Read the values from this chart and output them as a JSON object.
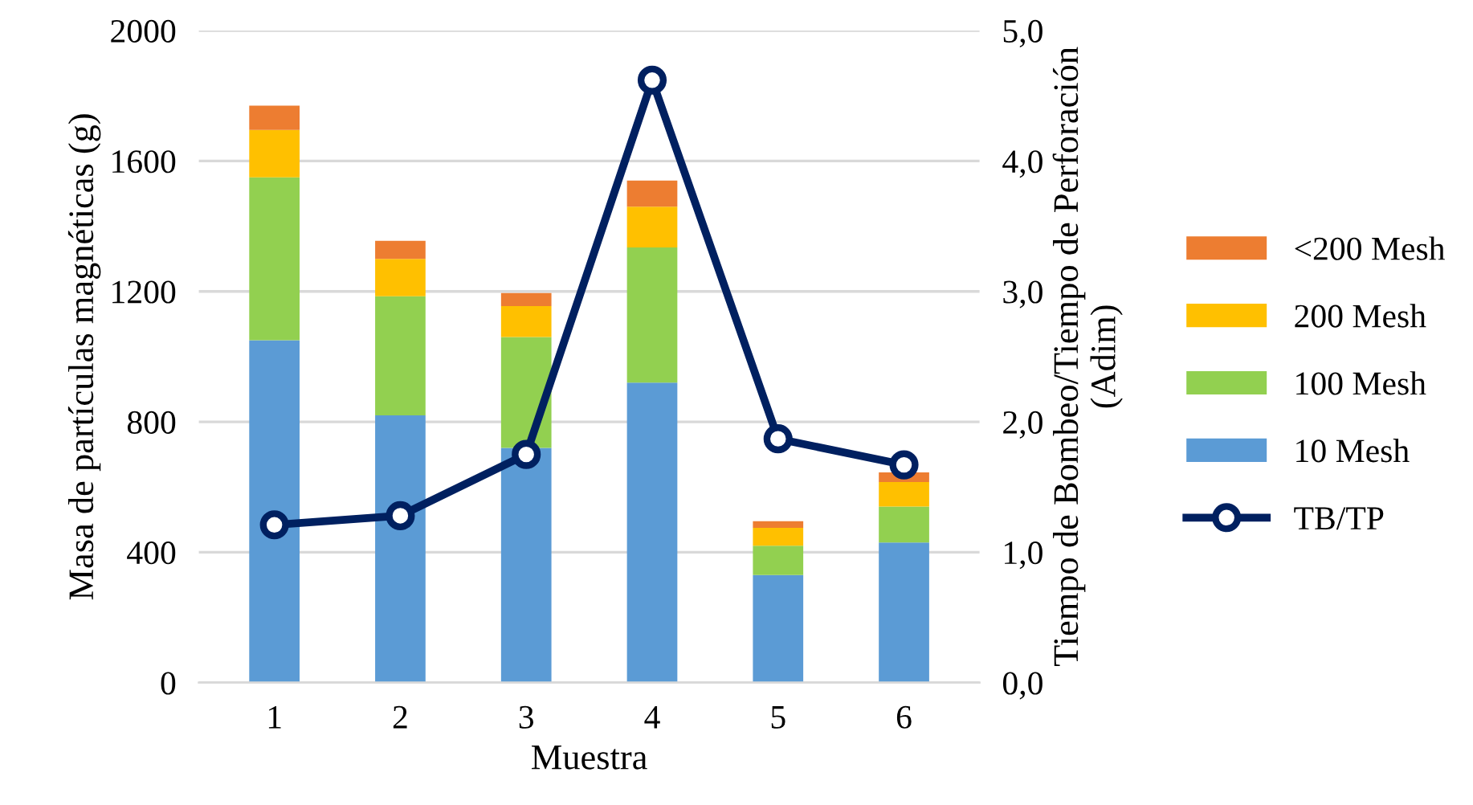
{
  "chart_data": {
    "type": "bar",
    "stacked": true,
    "xlabel": "Muestra",
    "ylabel": "Masa de partículas magnéticas (g)",
    "y2label": "Tiempo de Bombeo/Tiempo de Perforación (Adim)",
    "categories": [
      "1",
      "2",
      "3",
      "4",
      "5",
      "6"
    ],
    "series": [
      {
        "name": "10 Mesh",
        "color": "#5b9bd5",
        "values": [
          1050,
          820,
          720,
          920,
          330,
          430
        ]
      },
      {
        "name": "100 Mesh",
        "color": "#92d050",
        "values": [
          500,
          365,
          340,
          415,
          90,
          110
        ]
      },
      {
        "name": "200 Mesh",
        "color": "#ffc000",
        "values": [
          145,
          115,
          95,
          125,
          55,
          75
        ]
      },
      {
        "name": "<200 Mesh",
        "color": "#ed7d31",
        "values": [
          75,
          55,
          40,
          80,
          20,
          30
        ]
      },
      {
        "name": "TB/TP",
        "type": "line",
        "axis": "y2",
        "color": "#002060",
        "marker": "circle",
        "values": [
          1.21,
          1.28,
          1.75,
          4.62,
          1.87,
          1.67
        ]
      }
    ],
    "ylim": [
      0,
      2000
    ],
    "yticks": [
      0,
      400,
      800,
      1200,
      1600,
      2000
    ],
    "y2lim": [
      0,
      5
    ],
    "y2ticks": [
      {
        "value": 0,
        "label": "0,0"
      },
      {
        "value": 1,
        "label": "1,0"
      },
      {
        "value": 2,
        "label": "2,0"
      },
      {
        "value": 3,
        "label": "3,0"
      },
      {
        "value": 4,
        "label": "4,0"
      },
      {
        "value": 5,
        "label": "5,0"
      }
    ],
    "grid": "y",
    "legend": "right"
  }
}
